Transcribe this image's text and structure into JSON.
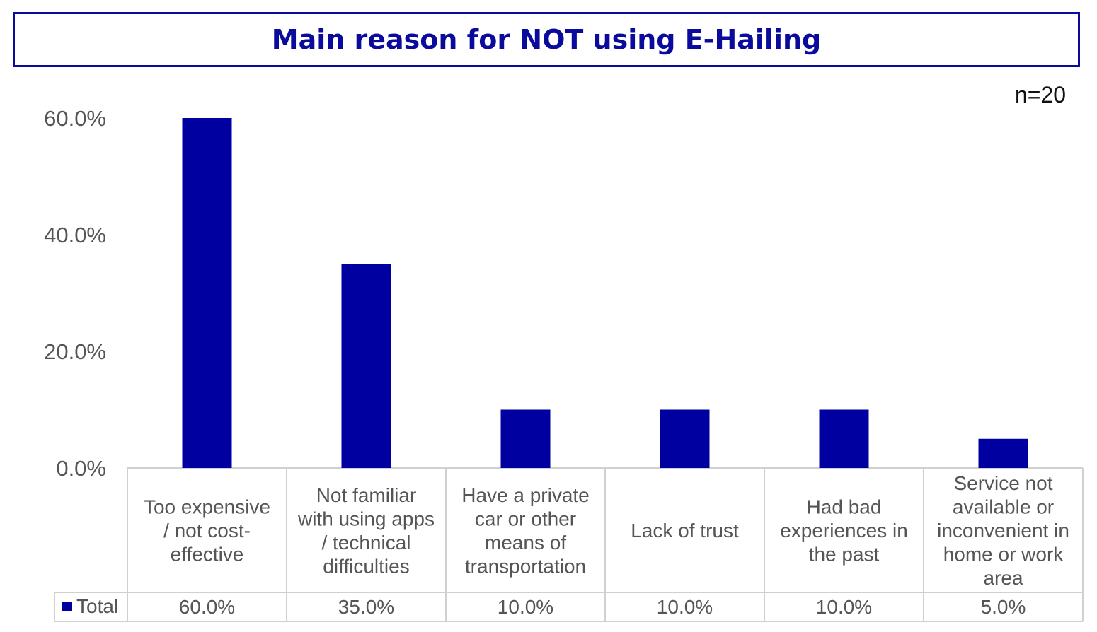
{
  "title": "Main reason for NOT using E-Hailing",
  "sample_size": "n=20",
  "colors": {
    "bar": "#0000a0",
    "title": "#0a0a9c",
    "grid": "#d0d0d0",
    "text": "#555555"
  },
  "chart_data": {
    "type": "bar",
    "title": "Main reason for NOT using E-Hailing",
    "categories": [
      [
        "Too expensive",
        "/ not cost-",
        "effective"
      ],
      [
        "Not familiar",
        "with using apps",
        "/ technical",
        "difficulties"
      ],
      [
        "Have a private",
        "car or other",
        "means of",
        "transportation"
      ],
      [
        "Lack of trust"
      ],
      [
        "Had bad",
        "experiences in",
        "the past"
      ],
      [
        "Service not",
        "available or",
        "inconvenient in",
        "home or work",
        "area"
      ]
    ],
    "series": [
      {
        "name": "Total",
        "values": [
          60.0,
          35.0,
          10.0,
          10.0,
          10.0,
          5.0
        ],
        "labels": [
          "60.0%",
          "35.0%",
          "10.0%",
          "10.0%",
          "10.0%",
          "5.0%"
        ]
      }
    ],
    "yticks": [
      "0.0%",
      "20.0%",
      "40.0%",
      "60.0%"
    ],
    "ytick_values": [
      0,
      20,
      40,
      60
    ],
    "ylim": [
      0,
      60
    ],
    "legend": "data-table"
  }
}
